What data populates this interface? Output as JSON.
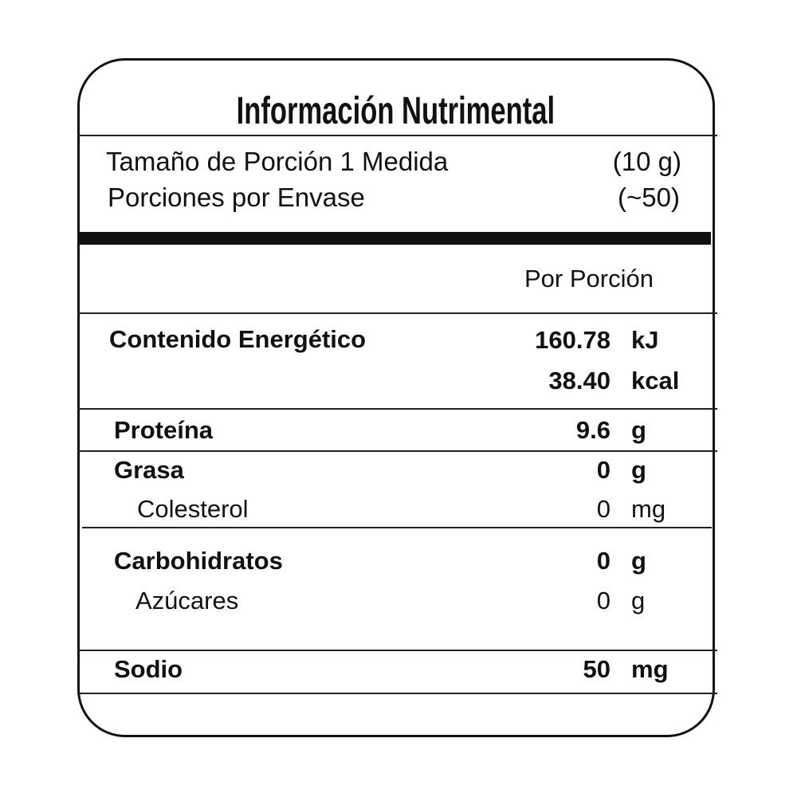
{
  "title": "Información Nutrimental",
  "serving": {
    "size_label": "Tamaño de Porción 1 Medida",
    "size_value": "(10 g)",
    "per_container_label": "Porciones por Envase",
    "per_container_value": "(~50)"
  },
  "column_header": "Por Porción",
  "rows": [
    {
      "label": "Contenido Energético",
      "value": "160.78",
      "unit": "kJ"
    },
    {
      "label": "",
      "value": "38.40",
      "unit": "kcal"
    },
    {
      "label": "Proteína",
      "value": "9.6",
      "unit": "g"
    },
    {
      "label": "Grasa",
      "value": "0",
      "unit": "g"
    },
    {
      "label": "Colesterol",
      "value": "0",
      "unit": "mg"
    },
    {
      "label": "Carbohidratos",
      "value": "0",
      "unit": "g"
    },
    {
      "label": "Azúcares",
      "value": "0",
      "unit": "g"
    },
    {
      "label": "Sodio",
      "value": "50",
      "unit": "mg"
    }
  ]
}
